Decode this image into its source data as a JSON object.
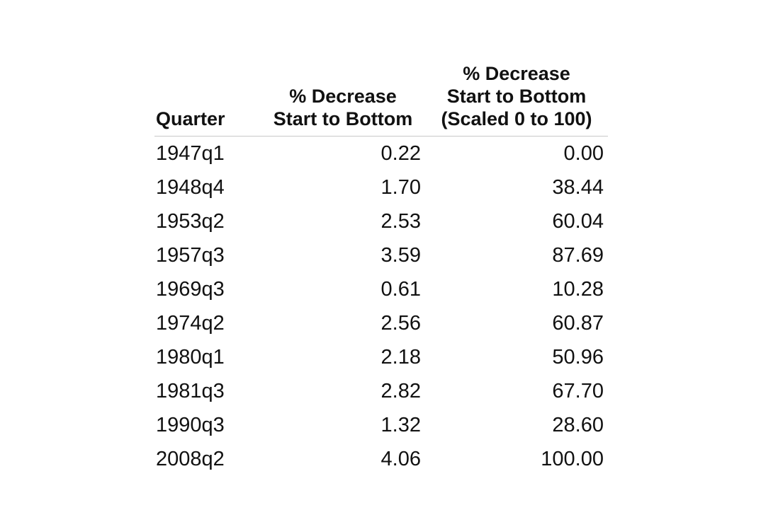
{
  "table": {
    "headers": {
      "quarter": "Quarter",
      "pct_decrease": [
        "% Decrease",
        "Start to Bottom"
      ],
      "pct_scaled": [
        "% Decrease",
        "Start to Bottom",
        "(Scaled 0 to 100)"
      ]
    },
    "rows": [
      {
        "quarter": "1947q1",
        "pct": "0.22",
        "scaled": "0.00"
      },
      {
        "quarter": "1948q4",
        "pct": "1.70",
        "scaled": "38.44"
      },
      {
        "quarter": "1953q2",
        "pct": "2.53",
        "scaled": "60.04"
      },
      {
        "quarter": "1957q3",
        "pct": "3.59",
        "scaled": "87.69"
      },
      {
        "quarter": "1969q3",
        "pct": "0.61",
        "scaled": "10.28"
      },
      {
        "quarter": "1974q2",
        "pct": "2.56",
        "scaled": "60.87"
      },
      {
        "quarter": "1980q1",
        "pct": "2.18",
        "scaled": "50.96"
      },
      {
        "quarter": "1981q3",
        "pct": "2.82",
        "scaled": "67.70"
      },
      {
        "quarter": "1990q3",
        "pct": "1.32",
        "scaled": "28.60"
      },
      {
        "quarter": "2008q2",
        "pct": "4.06",
        "scaled": "100.00"
      }
    ]
  }
}
